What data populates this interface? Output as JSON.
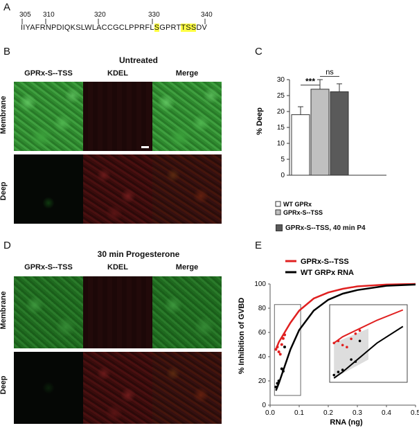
{
  "panel_labels": {
    "a": "A",
    "b": "B",
    "c": "C",
    "d": "D",
    "e": "E"
  },
  "panel_a": {
    "ticks": [
      "305",
      "310",
      "320",
      "330",
      "340"
    ],
    "seq_pre": "IIYAFRNPDIQKSLWLACCGCLPPRFL",
    "seq_h1": "S",
    "seq_mid": "GPRT",
    "seq_h2": "TSS",
    "seq_post": "DV",
    "highlight_color": "#ffff44"
  },
  "panel_b": {
    "title": "Untreated",
    "col_headers": [
      "GPRx-S--TSS",
      "KDEL",
      "Merge"
    ],
    "row_labels": [
      "Membrane",
      "Deep"
    ]
  },
  "panel_d": {
    "title": "30 min Progesterone",
    "col_headers": [
      "GPRx-S--TSS",
      "KDEL",
      "Merge"
    ],
    "row_labels": [
      "Membrane",
      "Deep"
    ]
  },
  "chart_data": [
    {
      "type": "bar",
      "categories": [
        "WT GPRx",
        "GPRx-S--TSS",
        "GPRx-S--TSS, 40 min P4"
      ],
      "values": [
        19,
        27,
        26.2
      ],
      "errors": [
        2.5,
        3,
        2.5
      ],
      "colors": [
        "#ffffff",
        "#c0c0c0",
        "#5a5a5a"
      ],
      "ylabel": "% Deep",
      "ylim": [
        0,
        30
      ],
      "yticks": [
        "0",
        "5",
        "10",
        "15",
        "20",
        "25",
        "30"
      ],
      "annotations": [
        "***",
        "ns"
      ],
      "legend": [
        "WT GPRx",
        "GPRx-S--TSS",
        "GPRx-S--TSS, 40 min P4"
      ],
      "legend_position": "bottom"
    },
    {
      "type": "line",
      "xlabel": "RNA (ng)",
      "ylabel": "% Inhibition of GVBD",
      "xlim": [
        0,
        0.5
      ],
      "ylim": [
        0,
        100
      ],
      "xticks": [
        "0.0",
        "0.1",
        "0.2",
        "0.3",
        "0.4",
        "0.5"
      ],
      "yticks": [
        "0",
        "20",
        "40",
        "60",
        "80",
        "100"
      ],
      "series": [
        {
          "name": "GPRx-S--TSS",
          "color": "#e02020",
          "curve_x": [
            0.02,
            0.03,
            0.05,
            0.07,
            0.1,
            0.15,
            0.2,
            0.25,
            0.3,
            0.4,
            0.5
          ],
          "curve_y": [
            46,
            52,
            60,
            68,
            78,
            88,
            93,
            96,
            98,
            99.5,
            100
          ],
          "points_x": [
            0.02,
            0.025,
            0.03,
            0.035,
            0.04,
            0.045,
            0.05
          ],
          "points_y": [
            46,
            48,
            44,
            42,
            50,
            55,
            58
          ]
        },
        {
          "name": "WT GRPx RNA",
          "color": "#000000",
          "curve_x": [
            0.02,
            0.03,
            0.05,
            0.07,
            0.1,
            0.15,
            0.2,
            0.25,
            0.3,
            0.4,
            0.5
          ],
          "curve_y": [
            12,
            18,
            32,
            46,
            62,
            78,
            87,
            92,
            95,
            98.5,
            99.5
          ],
          "points_x": [
            0.02,
            0.025,
            0.03,
            0.04,
            0.045,
            0.05
          ],
          "points_y": [
            15,
            18,
            20,
            30,
            28,
            48
          ]
        }
      ],
      "legend_position": "top-left"
    }
  ]
}
